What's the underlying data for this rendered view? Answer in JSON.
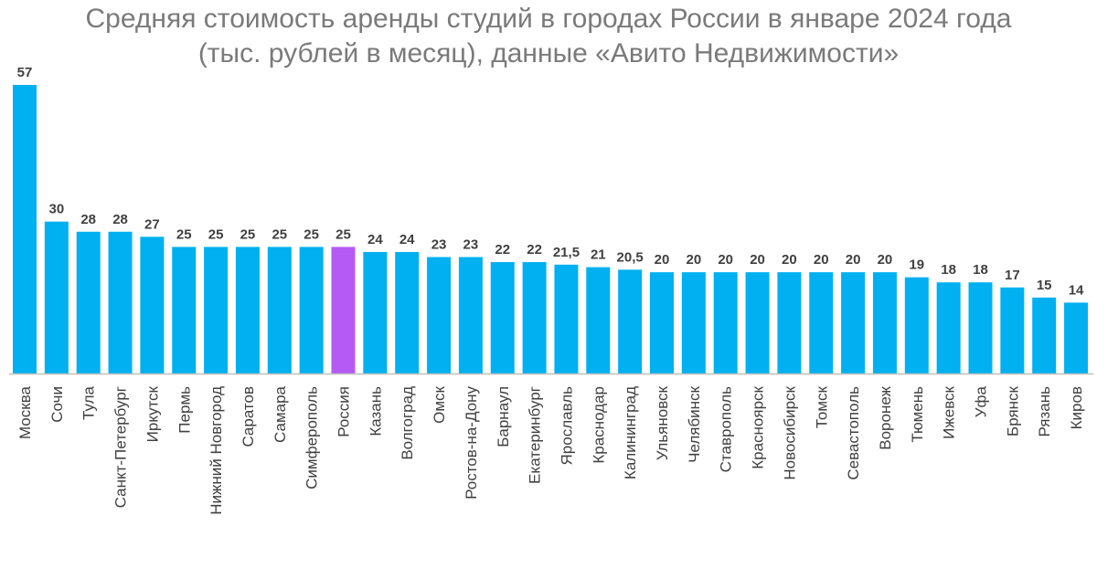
{
  "chart_data": {
    "type": "bar",
    "title": "Средняя стоимость аренды студий в городах России в январе 2024 года",
    "subtitle": "(тыс. рублей в месяц), данные «Авито Недвижимости»",
    "xlabel": "",
    "ylabel": "",
    "grid": false,
    "legend": "none",
    "ylim": [
      0,
      57
    ],
    "colors": {
      "default": "#00B0F0",
      "highlight": "#B55AF5",
      "axis": "#BFBFBF",
      "label": "#404040",
      "title": "#7A7A7A"
    },
    "highlight_category": "Россия",
    "categories": [
      "Москва",
      "Сочи",
      "Тула",
      "Санкт-Петербург",
      "Иркутск",
      "Пермь",
      "Нижний Новгород",
      "Саратов",
      "Самара",
      "Симферополь",
      "Россия",
      "Казань",
      "Волгоград",
      "Омск",
      "Ростов-на-Дону",
      "Барнаул",
      "Екатеринбург",
      "Ярославль",
      "Краснодар",
      "Калининград",
      "Ульяновск",
      "Челябинск",
      "Ставрополь",
      "Красноярск",
      "Новосибирск",
      "Томск",
      "Севастополь",
      "Воронеж",
      "Тюмень",
      "Ижевск",
      "Уфа",
      "Брянск",
      "Рязань",
      "Киров"
    ],
    "values": [
      57,
      30,
      28,
      28,
      27,
      25,
      25,
      25,
      25,
      25,
      25,
      24,
      24,
      23,
      23,
      22,
      22,
      21.5,
      21,
      20.5,
      20,
      20,
      20,
      20,
      20,
      20,
      20,
      20,
      19,
      18,
      18,
      17,
      15,
      14
    ],
    "value_labels": [
      "57",
      "30",
      "28",
      "28",
      "27",
      "25",
      "25",
      "25",
      "25",
      "25",
      "25",
      "24",
      "24",
      "23",
      "23",
      "22",
      "22",
      "21,5",
      "21",
      "20,5",
      "20",
      "20",
      "20",
      "20",
      "20",
      "20",
      "20",
      "20",
      "19",
      "18",
      "18",
      "17",
      "15",
      "14"
    ]
  }
}
